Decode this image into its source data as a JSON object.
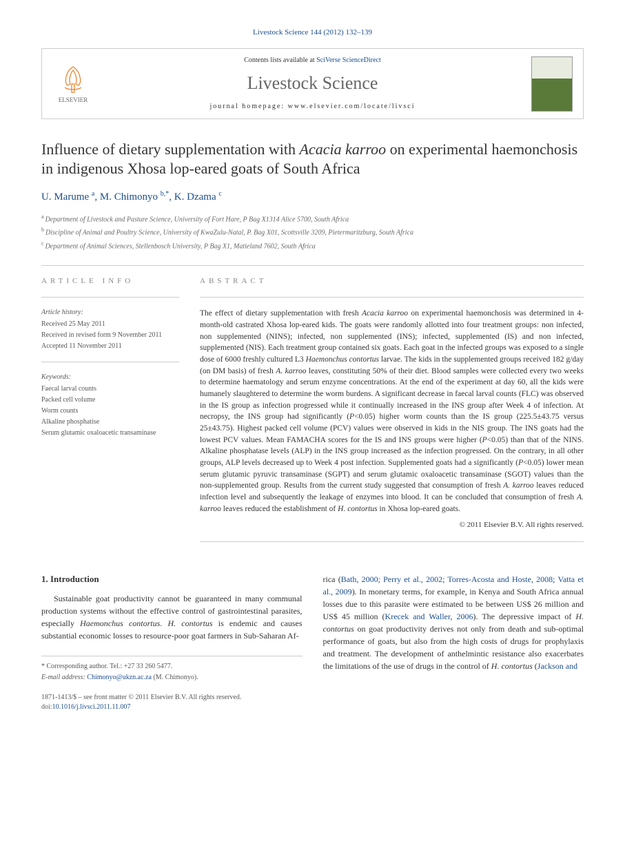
{
  "journal_ref": "Livestock Science 144 (2012) 132–139",
  "header": {
    "contents_prefix": "Contents lists available at ",
    "contents_link": "SciVerse ScienceDirect",
    "journal_name": "Livestock Science",
    "homepage_prefix": "journal homepage: ",
    "homepage_url": "www.elsevier.com/locate/livsci",
    "elsevier_label": "ELSEVIER",
    "cover_label": "LIVESTOCK SCIENCE"
  },
  "title_parts": {
    "pre": "Influence of dietary supplementation with ",
    "italic1": "Acacia karroo",
    "post": " on experimental haemonchosis in indigenous Xhosa lop-eared goats of South Africa"
  },
  "authors": [
    {
      "name": "U. Marume",
      "sup": "a"
    },
    {
      "name": "M. Chimonyo",
      "sup": "b,*",
      "corresponding": true
    },
    {
      "name": "K. Dzama",
      "sup": "c"
    }
  ],
  "affiliations": [
    {
      "sup": "a",
      "text": "Department of Livestock and Pasture Science, University of Fort Hare, P Bag X1314 Alice 5700, South Africa"
    },
    {
      "sup": "b",
      "text": "Discipline of Animal and Poultry Science, University of KwaZulu-Natal, P. Bag X01, Scottsville 3209, Pietermaritzburg, South Africa"
    },
    {
      "sup": "c",
      "text": "Department of Animal Sciences, Stellenbosch University, P Bag X1, Matieland 7602, South Africa"
    }
  ],
  "article_info": {
    "heading": "article info",
    "history_label": "Article history:",
    "history": [
      "Received 25 May 2011",
      "Received in revised form 9 November 2011",
      "Accepted 11 November 2011"
    ],
    "keywords_label": "Keywords:",
    "keywords": [
      "Faecal larval counts",
      "Packed cell volume",
      "Worm counts",
      "Alkaline phosphatise",
      "Serum glutamic oxaloacetic transaminase"
    ]
  },
  "abstract": {
    "heading": "abstract",
    "text_parts": [
      {
        "t": "The effect of dietary supplementation with fresh "
      },
      {
        "t": "Acacia karroo",
        "i": true
      },
      {
        "t": " on experimental haemonchosis was determined in 4-month-old castrated Xhosa lop-eared kids. The goats were randomly allotted into four treatment groups: non infected, non supplemented (NINS); infected, non supplemented (INS); infected, supplemented (IS) and non infected, supplemented (NIS). Each treatment group contained six goats. Each goat in the infected groups was exposed to a single dose of 6000 freshly cultured L3 "
      },
      {
        "t": "Haemonchus contortus",
        "i": true
      },
      {
        "t": " larvae. The kids in the supplemented groups received 182 g/day (on DM basis) of fresh "
      },
      {
        "t": "A. karroo",
        "i": true
      },
      {
        "t": " leaves, constituting 50% of their diet. Blood samples were collected every two weeks to determine haematology and serum enzyme concentrations. At the end of the experiment at day 60, all the kids were humanely slaughtered to determine the worm burdens. A significant decrease in faecal larval counts (FLC) was observed in the IS group as infection progressed while it continually increased in the INS group after Week 4 of infection. At necropsy, the INS group had significantly ("
      },
      {
        "t": "P",
        "i": true
      },
      {
        "t": "<0.05) higher worm counts than the IS group (225.5±43.75 versus 25±43.75). Highest packed cell volume (PCV) values were observed in kids in the NIS group. The INS goats had the lowest PCV values. Mean FAMACHA scores for the IS and INS groups were higher ("
      },
      {
        "t": "P",
        "i": true
      },
      {
        "t": "<0.05) than that of the NINS. Alkaline phosphatase levels (ALP) in the INS group increased as the infection progressed. On the contrary, in all other groups, ALP levels decreased up to Week 4 post infection. Supplemented goats had a significantly ("
      },
      {
        "t": "P",
        "i": true
      },
      {
        "t": "<0.05) lower mean serum glutamic pyruvic transaminase (SGPT) and serum glutamic oxaloacetic transaminase (SGOT) values than the non-supplemented group. Results from the current study suggested that consumption of fresh "
      },
      {
        "t": "A. karroo",
        "i": true
      },
      {
        "t": " leaves reduced infection level and subsequently the leakage of enzymes into blood. It can be concluded that consumption of fresh "
      },
      {
        "t": "A. karroo",
        "i": true
      },
      {
        "t": " leaves reduced the establishment of "
      },
      {
        "t": "H. contortus",
        "i": true
      },
      {
        "t": " in Xhosa lop-eared goats."
      }
    ],
    "copyright": "© 2011 Elsevier B.V. All rights reserved."
  },
  "intro": {
    "heading": "1. Introduction",
    "col1_parts": [
      {
        "t": "Sustainable goat productivity cannot be guaranteed in many communal production systems without the effective control of gastrointestinal parasites, especially "
      },
      {
        "t": "Haemonchus contortus",
        "i": true
      },
      {
        "t": ". "
      },
      {
        "t": "H. contortus",
        "i": true
      },
      {
        "t": " is endemic and causes substantial economic losses to resource-poor goat farmers in Sub-Saharan Af-"
      }
    ],
    "col2_parts": [
      {
        "t": "rica ("
      },
      {
        "t": "Bath, 2000; Perry et al., 2002; Torres-Acosta and Hoste, 2008; Vatta et al., 2009",
        "link": true
      },
      {
        "t": "). In monetary terms, for example, in Kenya and South Africa annual losses due to this parasite were estimated to be between US$ 26 million and US$ 45 million ("
      },
      {
        "t": "Krecek and Waller, 2006",
        "link": true
      },
      {
        "t": "). The depressive impact of "
      },
      {
        "t": "H. contortus",
        "i": true
      },
      {
        "t": " on goat productivity derives not only from death and sub-optimal performance of goats, but also from the high costs of drugs for prophylaxis and treatment. The development of anthelmintic resistance also exacerbates the limitations of the use of drugs in the control of "
      },
      {
        "t": "H. contortus",
        "i": true
      },
      {
        "t": " ("
      },
      {
        "t": "Jackson and",
        "link": true
      }
    ]
  },
  "footnotes": {
    "corresponding": "* Corresponding author. Tel.: +27 33 260 5477.",
    "email_label": "E-mail address:",
    "email": "Chimonyo@ukzn.ac.za",
    "email_person": "(M. Chimonyo)."
  },
  "bottom": {
    "issn_line": "1871-1413/$ – see front matter © 2011 Elsevier B.V. All rights reserved.",
    "doi_label": "doi:",
    "doi": "10.1016/j.livsci.2011.11.007"
  },
  "colors": {
    "link": "#1a4d8f",
    "text": "#333333",
    "muted": "#666666",
    "border": "#cccccc"
  }
}
